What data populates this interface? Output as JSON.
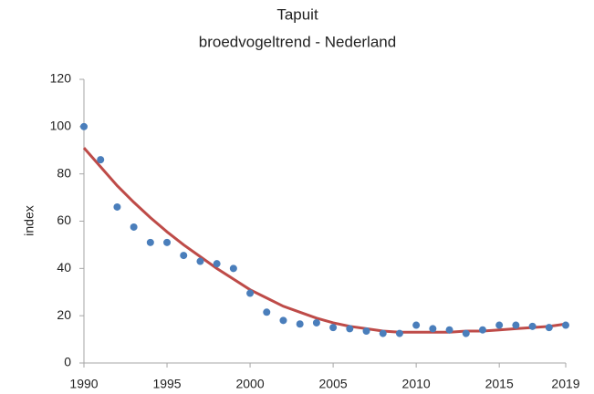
{
  "chart_data": {
    "type": "scatter",
    "title": "Tapuit",
    "subtitle": "broedvogeltrend - Nederland",
    "y_label": "index",
    "x": [
      1990,
      1991,
      1992,
      1993,
      1994,
      1995,
      1996,
      1997,
      1998,
      1999,
      2000,
      2001,
      2002,
      2003,
      2004,
      2005,
      2006,
      2007,
      2008,
      2009,
      2010,
      2011,
      2012,
      2013,
      2014,
      2015,
      2016,
      2017,
      2018,
      2019
    ],
    "series": [
      {
        "mark": "point",
        "color": "#4a7ebb",
        "values": [
          100,
          86,
          66,
          57.5,
          51,
          51,
          45.5,
          43,
          42,
          40,
          29.5,
          21.5,
          18,
          16.5,
          17,
          15,
          14.5,
          13.5,
          12.5,
          12.5,
          16,
          14.5,
          14,
          12.5,
          14,
          16,
          16,
          15.5,
          15,
          16
        ]
      },
      {
        "mark": "line",
        "color": "#be4b48",
        "values": [
          91,
          83,
          75,
          68,
          61.5,
          55.5,
          50,
          45,
          40,
          35.5,
          31,
          27.5,
          24,
          21.5,
          19,
          17,
          15.5,
          14.5,
          13.5,
          13,
          13,
          13,
          13,
          13.5,
          13.5,
          14,
          14.5,
          15,
          15.5,
          16.5
        ]
      }
    ],
    "xlim": [
      1990,
      2019
    ],
    "xticks": [
      1990,
      1995,
      2000,
      2005,
      2010,
      2015,
      2019
    ],
    "ylim": [
      0,
      120
    ],
    "yticks": [
      0,
      20,
      40,
      60,
      80,
      100,
      120
    ],
    "grid": false
  }
}
